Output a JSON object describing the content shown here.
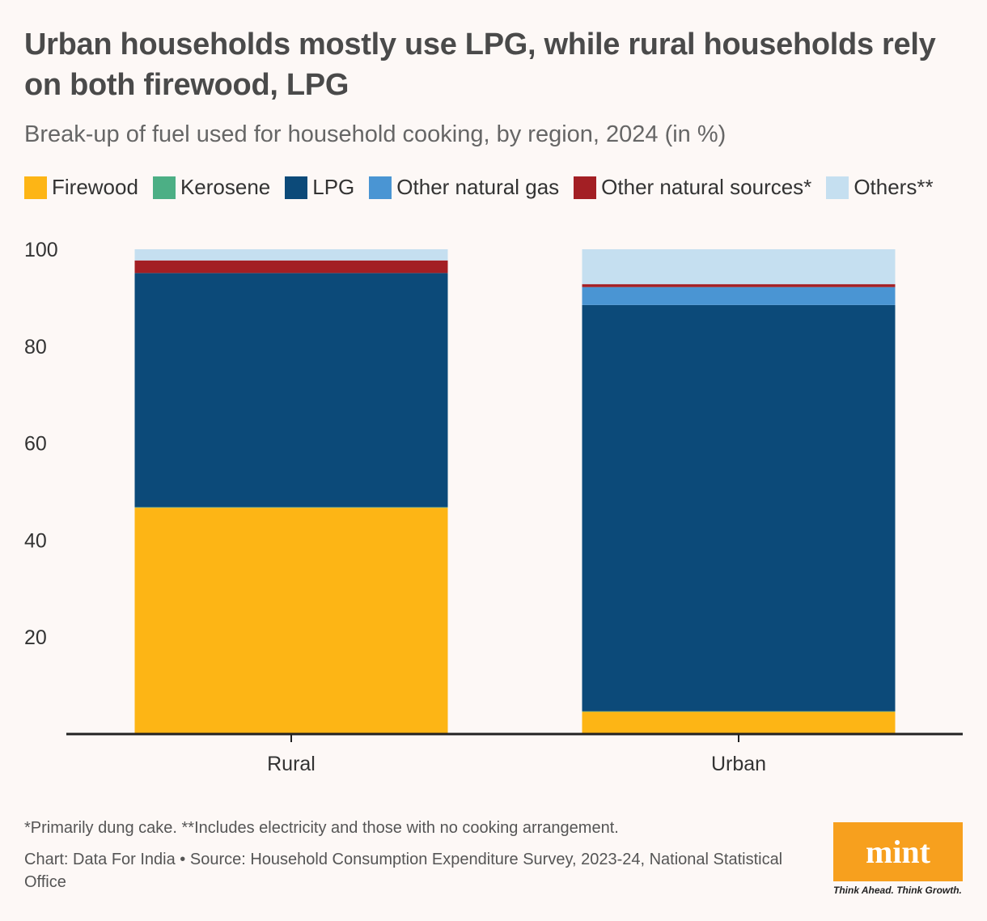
{
  "header": {
    "title": "Urban households mostly use LPG, while rural households rely on both firewood, LPG",
    "subtitle": "Break-up of fuel used for household cooking, by region, 2024 (in %)"
  },
  "legend": [
    {
      "label": "Firewood",
      "color": "#fdb515"
    },
    {
      "label": "Kerosene",
      "color": "#4caf85"
    },
    {
      "label": "LPG",
      "color": "#0c4a79"
    },
    {
      "label": "Other natural gas",
      "color": "#4a95d3"
    },
    {
      "label": "Other natural sources*",
      "color": "#a31f24"
    },
    {
      "label": "Others**",
      "color": "#c5dff0"
    }
  ],
  "chart_data": {
    "type": "bar",
    "stacked": true,
    "categories": [
      "Rural",
      "Urban"
    ],
    "series": [
      {
        "name": "Firewood",
        "color": "#fdb515",
        "values": [
          46.7,
          4.6
        ]
      },
      {
        "name": "Kerosene",
        "color": "#4caf85",
        "values": [
          0.1,
          0.1
        ]
      },
      {
        "name": "LPG",
        "color": "#0c4a79",
        "values": [
          48.3,
          83.8
        ]
      },
      {
        "name": "Other natural gas",
        "color": "#4a95d3",
        "values": [
          0.0,
          3.7
        ]
      },
      {
        "name": "Other natural sources*",
        "color": "#a31f24",
        "values": [
          2.6,
          0.6
        ]
      },
      {
        "name": "Others**",
        "color": "#c5dff0",
        "values": [
          2.3,
          7.2
        ]
      }
    ],
    "yticks": [
      20,
      40,
      60,
      80,
      100
    ],
    "ylim": [
      0,
      100
    ],
    "xlabel": "",
    "ylabel": ""
  },
  "footer": {
    "footnote": "*Primarily dung cake. **Includes electricity and those with no cooking arrangement.",
    "source": "Chart: Data For India • Source: Household Consumption Expenditure Survey, 2023-24, National Statistical Office"
  },
  "logo": {
    "name": "mint",
    "tagline": "Think Ahead. Think Growth.",
    "color": "#f7a01e"
  }
}
